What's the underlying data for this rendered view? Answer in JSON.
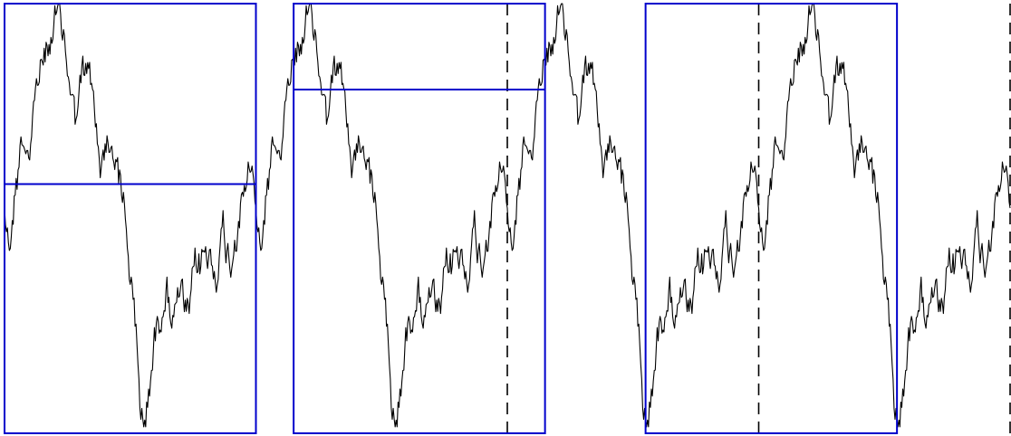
{
  "figure": {
    "description_type": "periodic-random-walk",
    "periods": 4,
    "trace_color": "#000000",
    "box_color": "#0000cc",
    "divider_color": "#000000",
    "boxes": [
      {
        "name": "box-1",
        "start_period": 0,
        "level": 0.42
      },
      {
        "name": "box-2",
        "start_period": 1.15,
        "level": 0.2
      },
      {
        "name": "box-3",
        "start_period": 2.55,
        "level": null
      }
    ]
  }
}
